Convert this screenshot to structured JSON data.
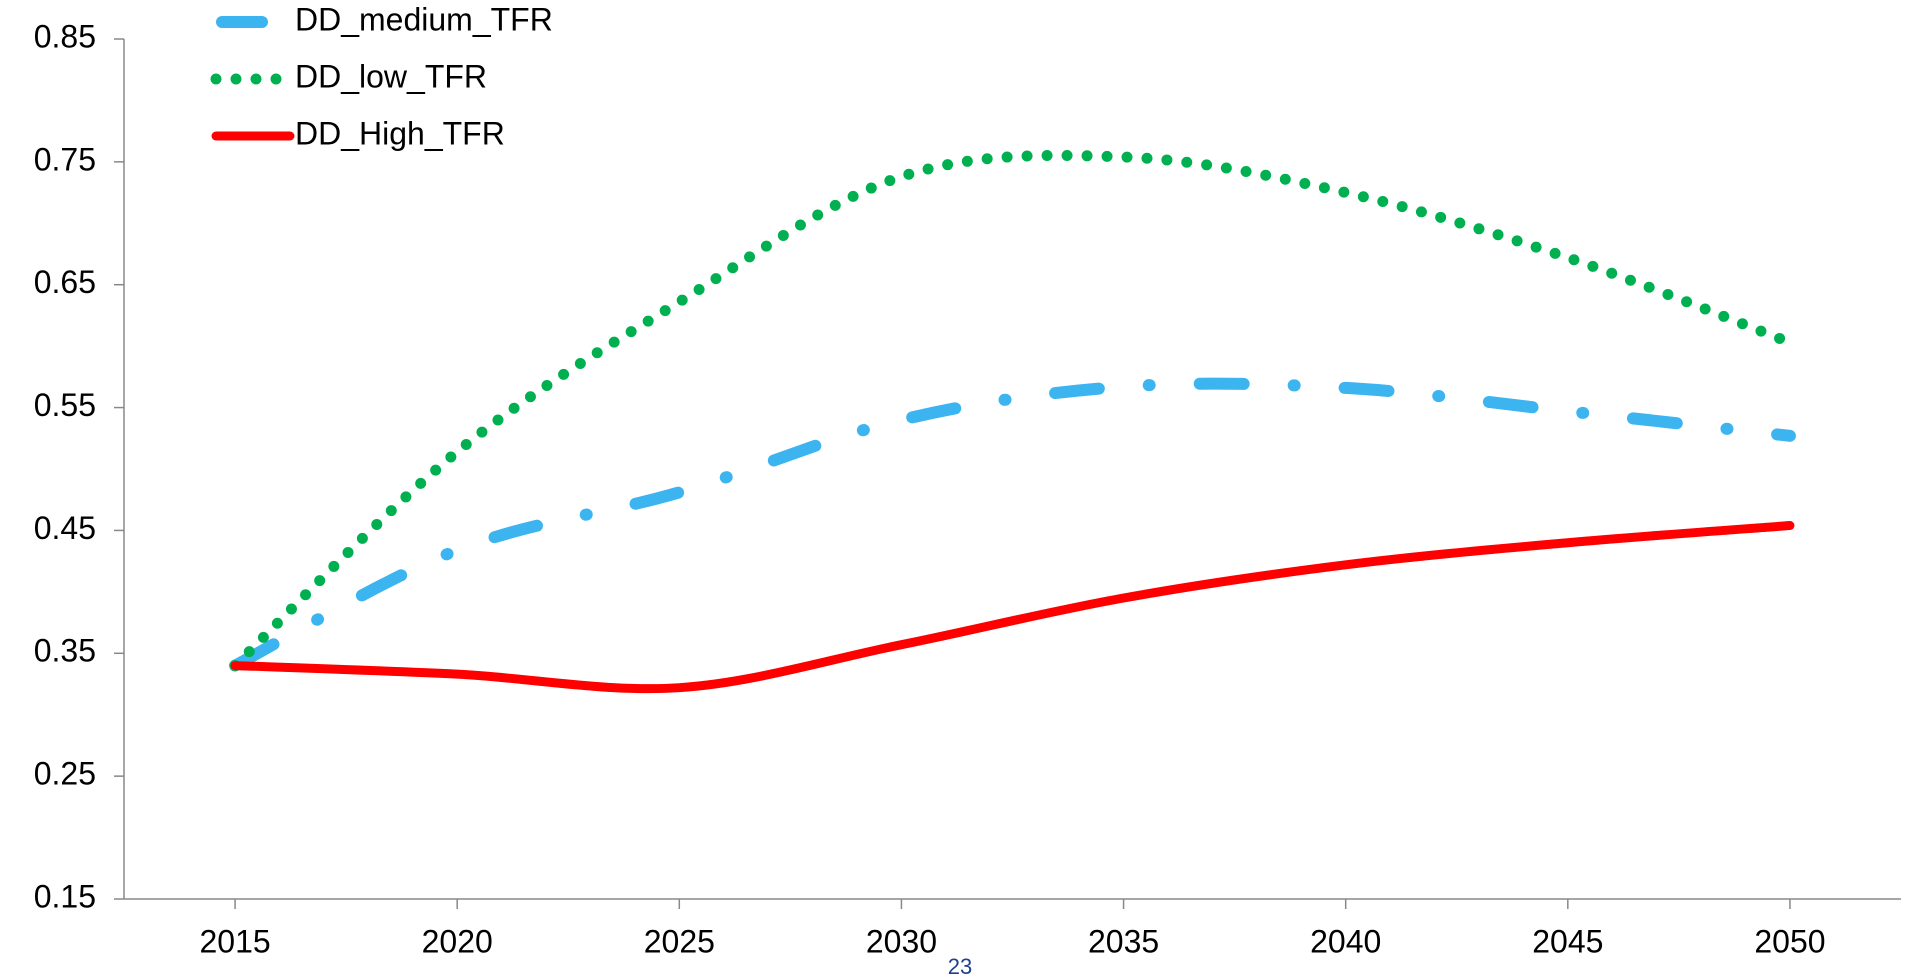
{
  "chart_data": {
    "type": "line",
    "x": [
      2015,
      2020,
      2025,
      2030,
      2035,
      2040,
      2045,
      2050
    ],
    "series": [
      {
        "name": "DD_medium_TFR",
        "color": "#3cb4f0",
        "style": "dashdot",
        "values": [
          0.34,
          0.434,
          0.481,
          0.54,
          0.567,
          0.566,
          0.547,
          0.527
        ]
      },
      {
        "name": "DD_low_TFR",
        "color": "#00b050",
        "style": "dotted",
        "values": [
          0.34,
          0.514,
          0.636,
          0.738,
          0.754,
          0.725,
          0.672,
          0.603
        ]
      },
      {
        "name": "DD_High_TFR",
        "color": "#ff0000",
        "style": "solid",
        "values": [
          0.34,
          0.333,
          0.322,
          0.357,
          0.395,
          0.422,
          0.44,
          0.454
        ]
      }
    ],
    "xlim": [
      2012.5,
      2052.5
    ],
    "xticks": [
      2015,
      2020,
      2025,
      2030,
      2035,
      2040,
      2045,
      2050
    ],
    "ylim": [
      0.15,
      0.85
    ],
    "yticks": [
      0.15,
      0.25,
      0.35,
      0.45,
      0.55,
      0.65,
      0.75,
      0.85
    ],
    "legend": "upper left",
    "grid": false,
    "annotation": "23"
  }
}
